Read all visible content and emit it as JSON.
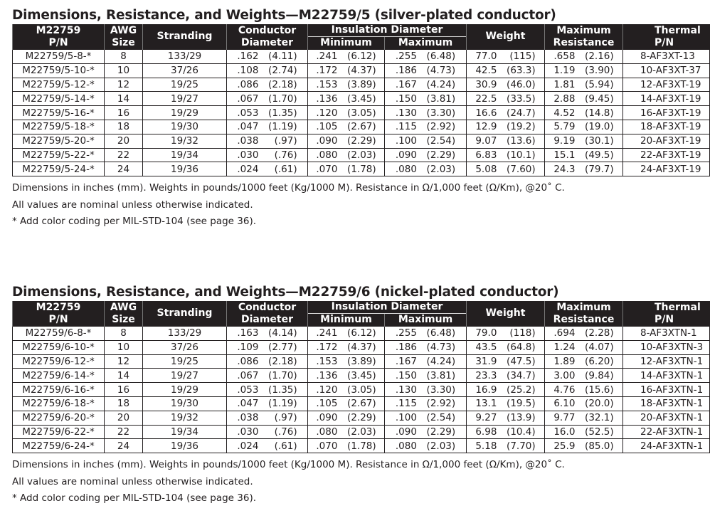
{
  "headers": {
    "pn": [
      "M22759",
      "P/N"
    ],
    "awg": [
      "AWG",
      "Size"
    ],
    "stranding": "Stranding",
    "conductor": [
      "Conductor",
      "Diameter"
    ],
    "insulation": "Insulation Diameter",
    "minimum": "Minimum",
    "maximum": "Maximum",
    "weight": "Weight",
    "resistance": [
      "Maximum",
      "Resistance"
    ],
    "thermal": [
      "Thermal",
      "P/N"
    ]
  },
  "tables": [
    {
      "title": "Dimensions, Resistance, and Weights—M22759/5  (silver-plated conductor)",
      "rows": [
        [
          "M22759/5-8-*",
          "8",
          "133/29",
          ".162",
          "(4.11)",
          ".241",
          "(6.12)",
          ".255",
          "(6.48)",
          "77.0",
          "(115)",
          ".658",
          "(2.16)",
          "8-AF3XT-13"
        ],
        [
          "M22759/5-10-*",
          "10",
          "37/26",
          ".108",
          "(2.74)",
          ".172",
          "(4.37)",
          ".186",
          "(4.73)",
          "42.5",
          "(63.3)",
          "1.19",
          "(3.90)",
          "10-AF3XT-37"
        ],
        [
          "M22759/5-12-*",
          "12",
          "19/25",
          ".086",
          "(2.18)",
          ".153",
          "(3.89)",
          ".167",
          "(4.24)",
          "30.9",
          "(46.0)",
          "1.81",
          "(5.94)",
          "12-AF3XT-19"
        ],
        [
          "M22759/5-14-*",
          "14",
          "19/27",
          ".067",
          "(1.70)",
          ".136",
          "(3.45)",
          ".150",
          "(3.81)",
          "22.5",
          "(33.5)",
          "2.88",
          "(9.45)",
          "14-AF3XT-19"
        ],
        [
          "M22759/5-16-*",
          "16",
          "19/29",
          ".053",
          "(1.35)",
          ".120",
          "(3.05)",
          ".130",
          "(3.30)",
          "16.6",
          "(24.7)",
          "4.52",
          "(14.8)",
          "16-AF3XT-19"
        ],
        [
          "M22759/5-18-*",
          "18",
          "19/30",
          ".047",
          "(1.19)",
          ".105",
          "(2.67)",
          ".115",
          "(2.92)",
          "12.9",
          "(19.2)",
          "5.79",
          "(19.0)",
          "18-AF3XT-19"
        ],
        [
          "M22759/5-20-*",
          "20",
          "19/32",
          ".038",
          "(.97)",
          ".090",
          "(2.29)",
          ".100",
          "(2.54)",
          "9.07",
          "(13.6)",
          "9.19",
          "(30.1)",
          "20-AF3XT-19"
        ],
        [
          "M22759/5-22-*",
          "22",
          "19/34",
          ".030",
          "(.76)",
          ".080",
          "(2.03)",
          ".090",
          "(2.29)",
          "6.83",
          "(10.1)",
          "15.1",
          "(49.5)",
          "22-AF3XT-19"
        ],
        [
          "M22759/5-24-*",
          "24",
          "19/36",
          ".024",
          "(.61)",
          ".070",
          "(1.78)",
          ".080",
          "(2.03)",
          "5.08",
          "(7.60)",
          "24.3",
          "(79.7)",
          "24-AF3XT-19"
        ]
      ],
      "notes": [
        "Dimensions in inches (mm).  Weights in pounds/1000 feet (Kg/1000 M).  Resistance in Ω/1,000 feet (Ω/Km), @20˚ C.",
        "All values are nominal unless otherwise indicated.",
        "* Add color coding per MIL-STD-104 (see page 36)."
      ]
    },
    {
      "title": "Dimensions, Resistance, and Weights—M22759/6  (nickel-plated conductor)",
      "rows": [
        [
          "M22759/6-8-*",
          "8",
          "133/29",
          ".163",
          "(4.14)",
          ".241",
          "(6.12)",
          ".255",
          "(6.48)",
          "79.0",
          "(118)",
          ".694",
          "(2.28)",
          "8-AF3XTN-1"
        ],
        [
          "M22759/6-10-*",
          "10",
          "37/26",
          ".109",
          "(2.77)",
          ".172",
          "(4.37)",
          ".186",
          "(4.73)",
          "43.5",
          "(64.8)",
          "1.24",
          "(4.07)",
          "10-AF3XTN-3"
        ],
        [
          "M22759/6-12-*",
          "12",
          "19/25",
          ".086",
          "(2.18)",
          ".153",
          "(3.89)",
          ".167",
          "(4.24)",
          "31.9",
          "(47.5)",
          "1.89",
          "(6.20)",
          "12-AF3XTN-1"
        ],
        [
          "M22759/6-14-*",
          "14",
          "19/27",
          ".067",
          "(1.70)",
          ".136",
          "(3.45)",
          ".150",
          "(3.81)",
          "23.3",
          "(34.7)",
          "3.00",
          "(9.84)",
          "14-AF3XTN-1"
        ],
        [
          "M22759/6-16-*",
          "16",
          "19/29",
          ".053",
          "(1.35)",
          ".120",
          "(3.05)",
          ".130",
          "(3.30)",
          "16.9",
          "(25.2)",
          "4.76",
          "(15.6)",
          "16-AF3XTN-1"
        ],
        [
          "M22759/6-18-*",
          "18",
          "19/30",
          ".047",
          "(1.19)",
          ".105",
          "(2.67)",
          ".115",
          "(2.92)",
          "13.1",
          "(19.5)",
          "6.10",
          "(20.0)",
          "18-AF3XTN-1"
        ],
        [
          "M22759/6-20-*",
          "20",
          "19/32",
          ".038",
          "(.97)",
          ".090",
          "(2.29)",
          ".100",
          "(2.54)",
          "9.27",
          "(13.9)",
          "9.77",
          "(32.1)",
          "20-AF3XTN-1"
        ],
        [
          "M22759/6-22-*",
          "22",
          "19/34",
          ".030",
          "(.76)",
          ".080",
          "(2.03)",
          ".090",
          "(2.29)",
          "6.98",
          "(10.4)",
          "16.0",
          "(52.5)",
          "22-AF3XTN-1"
        ],
        [
          "M22759/6-24-*",
          "24",
          "19/36",
          ".024",
          "(.61)",
          ".070",
          "(1.78)",
          ".080",
          "(2.03)",
          "5.18",
          "(7.70)",
          "25.9",
          "(85.0)",
          "24-AF3XTN-1"
        ]
      ],
      "notes": [
        "Dimensions in inches (mm).  Weights in pounds/1000 feet (Kg/1000 M).  Resistance in Ω/1,000 feet (Ω/Km), @20˚ C.",
        "All values are nominal unless otherwise indicated.",
        "* Add color coding per MIL-STD-104 (see page 36)."
      ]
    }
  ]
}
